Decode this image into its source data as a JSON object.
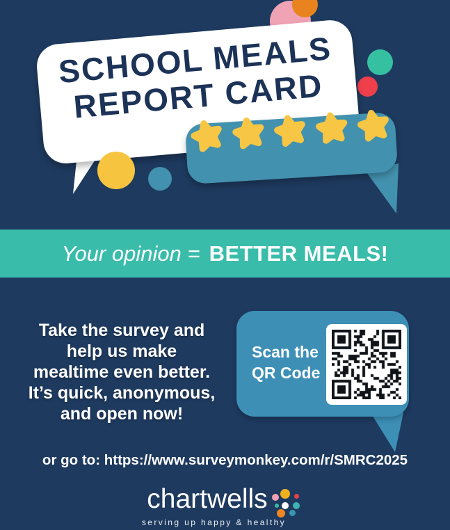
{
  "poster": {
    "hero": {
      "title_line1": "SCHOOL MEALS",
      "title_line2": "REPORT CARD",
      "rating": {
        "stars": 5,
        "max": 5
      }
    },
    "banner": {
      "italic_part": "Your opinion =",
      "bold_part": "BETTER MEALS!"
    },
    "body_lines": [
      "Take the survey and",
      "help us make",
      "mealtime even better.",
      "It’s quick, anonymous,",
      "and open now!"
    ],
    "qr": {
      "label_line1": "Scan the",
      "label_line2": "QR Code"
    },
    "link_line": "or go to: https://www.surveymonkey.com/r/SMRC2025",
    "logo": {
      "brand": "chartwells",
      "tagline": "serving up happy & healthy"
    },
    "colors": {
      "navy": "#1e3a5f",
      "title_navy": "#1c3357",
      "banner_teal": "#3abcab",
      "speech_blue": "#4291ae",
      "qr_blue": "#3d8fb6",
      "star_yellow": "#f7c644",
      "circle_yellow": "#f7c440",
      "circle_pink": "#f0a3b5",
      "circle_orange": "#e8831d",
      "circle_green": "#35c0a2",
      "circle_red": "#ee3f4a",
      "white": "#ffffff"
    }
  }
}
